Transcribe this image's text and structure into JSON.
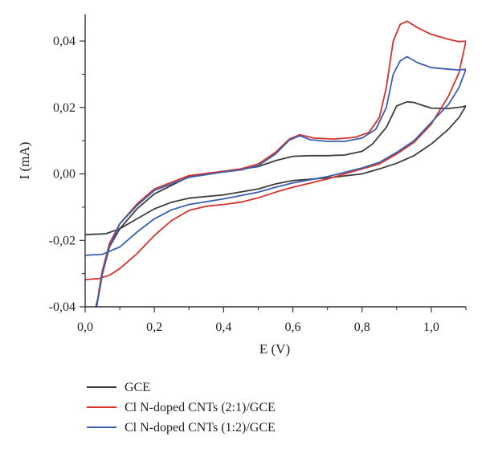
{
  "chart_data": {
    "type": "line",
    "title": "",
    "xlabel": "E (V)",
    "ylabel": "I (mA)",
    "xlim": [
      0.0,
      1.1
    ],
    "ylim": [
      -0.04,
      0.048
    ],
    "x_ticks": [
      0.0,
      0.2,
      0.4,
      0.6,
      0.8,
      1.0
    ],
    "x_tick_labels": [
      "0,0",
      "0,2",
      "0,4",
      "0,6",
      "0,8",
      "1,0"
    ],
    "y_ticks": [
      -0.04,
      -0.02,
      0.0,
      0.02,
      0.04
    ],
    "y_tick_labels": [
      "-0,04",
      "-0,02",
      "0,00",
      "0,02",
      "0,04"
    ],
    "grid": false,
    "legend_position": "bottom",
    "series": [
      {
        "name": "GCE",
        "color": "#3d3d3d",
        "points": [
          [
            0.0,
            -0.0183
          ],
          [
            0.06,
            -0.018
          ],
          [
            0.1,
            -0.0165
          ],
          [
            0.15,
            -0.0135
          ],
          [
            0.2,
            -0.0105
          ],
          [
            0.25,
            -0.0085
          ],
          [
            0.3,
            -0.0073
          ],
          [
            0.4,
            -0.0063
          ],
          [
            0.5,
            -0.0045
          ],
          [
            0.55,
            -0.003
          ],
          [
            0.6,
            -0.002
          ],
          [
            0.7,
            -0.0012
          ],
          [
            0.8,
            0.0
          ],
          [
            0.85,
            0.0015
          ],
          [
            0.9,
            0.0032
          ],
          [
            0.95,
            0.0055
          ],
          [
            1.0,
            0.009
          ],
          [
            1.05,
            0.0135
          ],
          [
            1.08,
            0.017
          ],
          [
            1.1,
            0.0205
          ],
          [
            1.09,
            0.0202
          ],
          [
            1.05,
            0.0197
          ],
          [
            1.0,
            0.0198
          ],
          [
            0.97,
            0.0208
          ],
          [
            0.95,
            0.0215
          ],
          [
            0.93,
            0.0217
          ],
          [
            0.9,
            0.0205
          ],
          [
            0.87,
            0.014
          ],
          [
            0.83,
            0.009
          ],
          [
            0.8,
            0.0068
          ],
          [
            0.75,
            0.0057
          ],
          [
            0.7,
            0.0055
          ],
          [
            0.65,
            0.0055
          ],
          [
            0.6,
            0.0053
          ],
          [
            0.55,
            0.004
          ],
          [
            0.5,
            0.0022
          ],
          [
            0.4,
            0.0007
          ],
          [
            0.3,
            -0.0008
          ],
          [
            0.2,
            -0.006
          ],
          [
            0.15,
            -0.0105
          ],
          [
            0.1,
            -0.0165
          ],
          [
            0.07,
            -0.022
          ],
          [
            0.05,
            -0.03
          ],
          [
            0.04,
            -0.036
          ],
          [
            0.03,
            -0.0405
          ]
        ]
      },
      {
        "name": "Cl N-doped CNTs (2:1)/GCE",
        "color": "#d6312b",
        "points": [
          [
            0.0,
            -0.0318
          ],
          [
            0.04,
            -0.0315
          ],
          [
            0.07,
            -0.0305
          ],
          [
            0.1,
            -0.0285
          ],
          [
            0.15,
            -0.024
          ],
          [
            0.2,
            -0.0185
          ],
          [
            0.25,
            -0.014
          ],
          [
            0.3,
            -0.011
          ],
          [
            0.35,
            -0.0097
          ],
          [
            0.4,
            -0.0092
          ],
          [
            0.45,
            -0.0085
          ],
          [
            0.5,
            -0.0072
          ],
          [
            0.55,
            -0.0055
          ],
          [
            0.6,
            -0.004
          ],
          [
            0.7,
            -0.0015
          ],
          [
            0.8,
            0.0015
          ],
          [
            0.85,
            0.003
          ],
          [
            0.9,
            0.006
          ],
          [
            0.95,
            0.0095
          ],
          [
            1.0,
            0.015
          ],
          [
            1.05,
            0.0235
          ],
          [
            1.08,
            0.0305
          ],
          [
            1.1,
            0.04
          ],
          [
            1.08,
            0.0398
          ],
          [
            1.05,
            0.0405
          ],
          [
            1.0,
            0.042
          ],
          [
            0.96,
            0.044
          ],
          [
            0.93,
            0.046
          ],
          [
            0.91,
            0.045
          ],
          [
            0.89,
            0.04
          ],
          [
            0.87,
            0.026
          ],
          [
            0.85,
            0.017
          ],
          [
            0.82,
            0.0125
          ],
          [
            0.78,
            0.011
          ],
          [
            0.72,
            0.0105
          ],
          [
            0.66,
            0.0108
          ],
          [
            0.62,
            0.0118
          ],
          [
            0.59,
            0.0105
          ],
          [
            0.55,
            0.0065
          ],
          [
            0.5,
            0.003
          ],
          [
            0.45,
            0.0015
          ],
          [
            0.4,
            0.0008
          ],
          [
            0.3,
            -0.0005
          ],
          [
            0.2,
            -0.0045
          ],
          [
            0.15,
            -0.009
          ],
          [
            0.1,
            -0.015
          ],
          [
            0.07,
            -0.021
          ],
          [
            0.05,
            -0.029
          ],
          [
            0.04,
            -0.035
          ],
          [
            0.033,
            -0.0405
          ]
        ]
      },
      {
        "name": "Cl N-doped CNTs (1:2)/GCE",
        "color": "#3a5fb0",
        "points": [
          [
            0.0,
            -0.0245
          ],
          [
            0.05,
            -0.0242
          ],
          [
            0.1,
            -0.022
          ],
          [
            0.15,
            -0.0175
          ],
          [
            0.2,
            -0.0135
          ],
          [
            0.25,
            -0.0108
          ],
          [
            0.3,
            -0.0092
          ],
          [
            0.4,
            -0.0075
          ],
          [
            0.5,
            -0.0055
          ],
          [
            0.55,
            -0.004
          ],
          [
            0.6,
            -0.0027
          ],
          [
            0.7,
            -0.0008
          ],
          [
            0.8,
            0.0018
          ],
          [
            0.85,
            0.0035
          ],
          [
            0.9,
            0.0065
          ],
          [
            0.95,
            0.01
          ],
          [
            1.0,
            0.0155
          ],
          [
            1.05,
            0.021
          ],
          [
            1.08,
            0.026
          ],
          [
            1.1,
            0.0315
          ],
          [
            1.08,
            0.0313
          ],
          [
            1.05,
            0.0315
          ],
          [
            1.0,
            0.032
          ],
          [
            0.96,
            0.0335
          ],
          [
            0.93,
            0.0353
          ],
          [
            0.91,
            0.034
          ],
          [
            0.89,
            0.03
          ],
          [
            0.87,
            0.02
          ],
          [
            0.84,
            0.0135
          ],
          [
            0.8,
            0.0108
          ],
          [
            0.75,
            0.0098
          ],
          [
            0.7,
            0.0098
          ],
          [
            0.65,
            0.0103
          ],
          [
            0.62,
            0.0115
          ],
          [
            0.59,
            0.0102
          ],
          [
            0.55,
            0.006
          ],
          [
            0.5,
            0.0025
          ],
          [
            0.45,
            0.0012
          ],
          [
            0.4,
            0.0006
          ],
          [
            0.3,
            -0.001
          ],
          [
            0.2,
            -0.005
          ],
          [
            0.15,
            -0.0095
          ],
          [
            0.1,
            -0.015
          ],
          [
            0.07,
            -0.022
          ],
          [
            0.05,
            -0.03
          ],
          [
            0.04,
            -0.036
          ],
          [
            0.032,
            -0.0405
          ]
        ]
      }
    ]
  }
}
